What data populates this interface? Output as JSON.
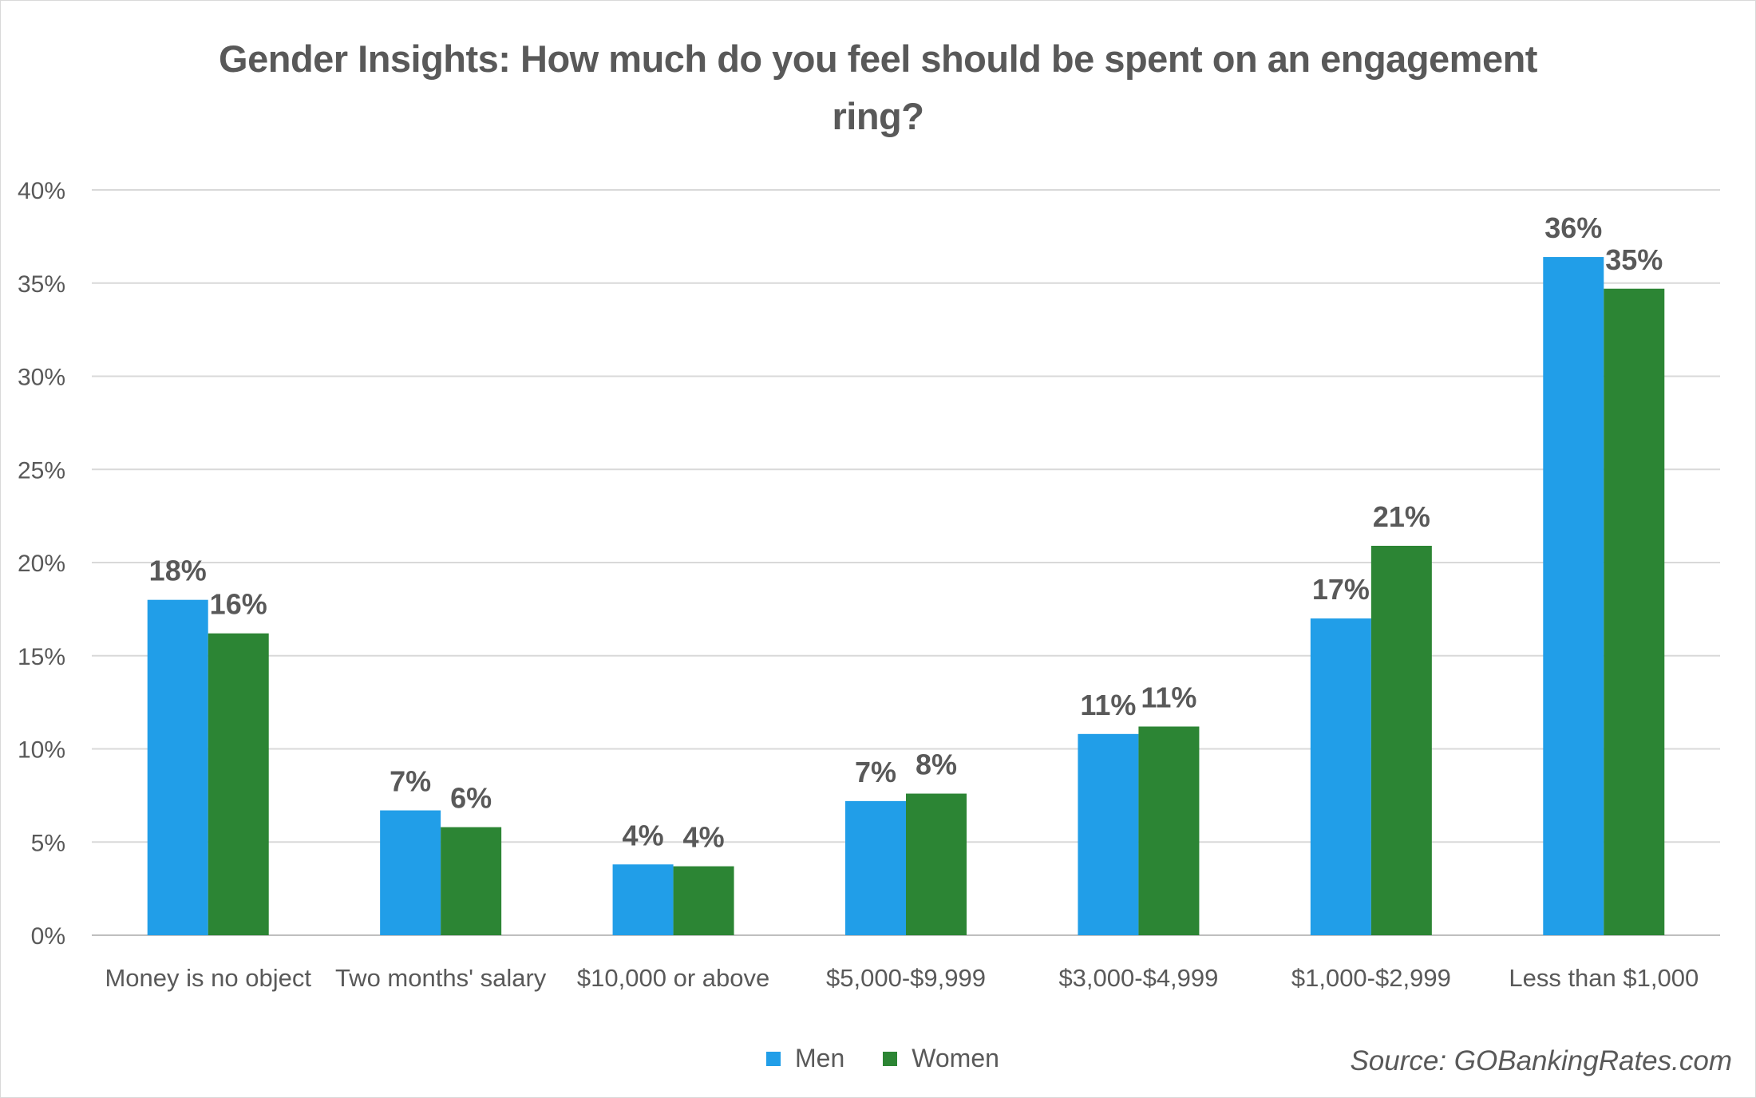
{
  "chart_data": {
    "type": "bar",
    "title_lines": [
      "Gender Insights: How much do you feel should be spent on an engagement",
      "ring?"
    ],
    "categories": [
      "Money is no object",
      "Two months' salary",
      "$10,000 or above",
      "$5,000-$9,999",
      "$3,000-$4,999",
      "$1,000-$2,999",
      "Less than $1,000"
    ],
    "series": [
      {
        "name": "Men",
        "color": "#219ee8",
        "values": [
          18,
          6.7,
          3.8,
          7.2,
          10.8,
          17,
          36.4
        ],
        "labels": [
          "18%",
          "7%",
          "4%",
          "7%",
          "11%",
          "17%",
          "36%"
        ]
      },
      {
        "name": "Women",
        "color": "#2c8534",
        "values": [
          16.2,
          5.8,
          3.7,
          7.6,
          11.2,
          20.9,
          34.7
        ],
        "labels": [
          "16%",
          "6%",
          "4%",
          "8%",
          "11%",
          "21%",
          "35%"
        ]
      }
    ],
    "ylim": [
      0,
      40
    ],
    "yticks": [
      "0%",
      "5%",
      "10%",
      "15%",
      "20%",
      "25%",
      "30%",
      "35%",
      "40%"
    ],
    "ytick_values": [
      0,
      5,
      10,
      15,
      20,
      25,
      30,
      35,
      40
    ],
    "grid": true,
    "legend": "bottom"
  },
  "source": "Source: GOBankingRates.com"
}
